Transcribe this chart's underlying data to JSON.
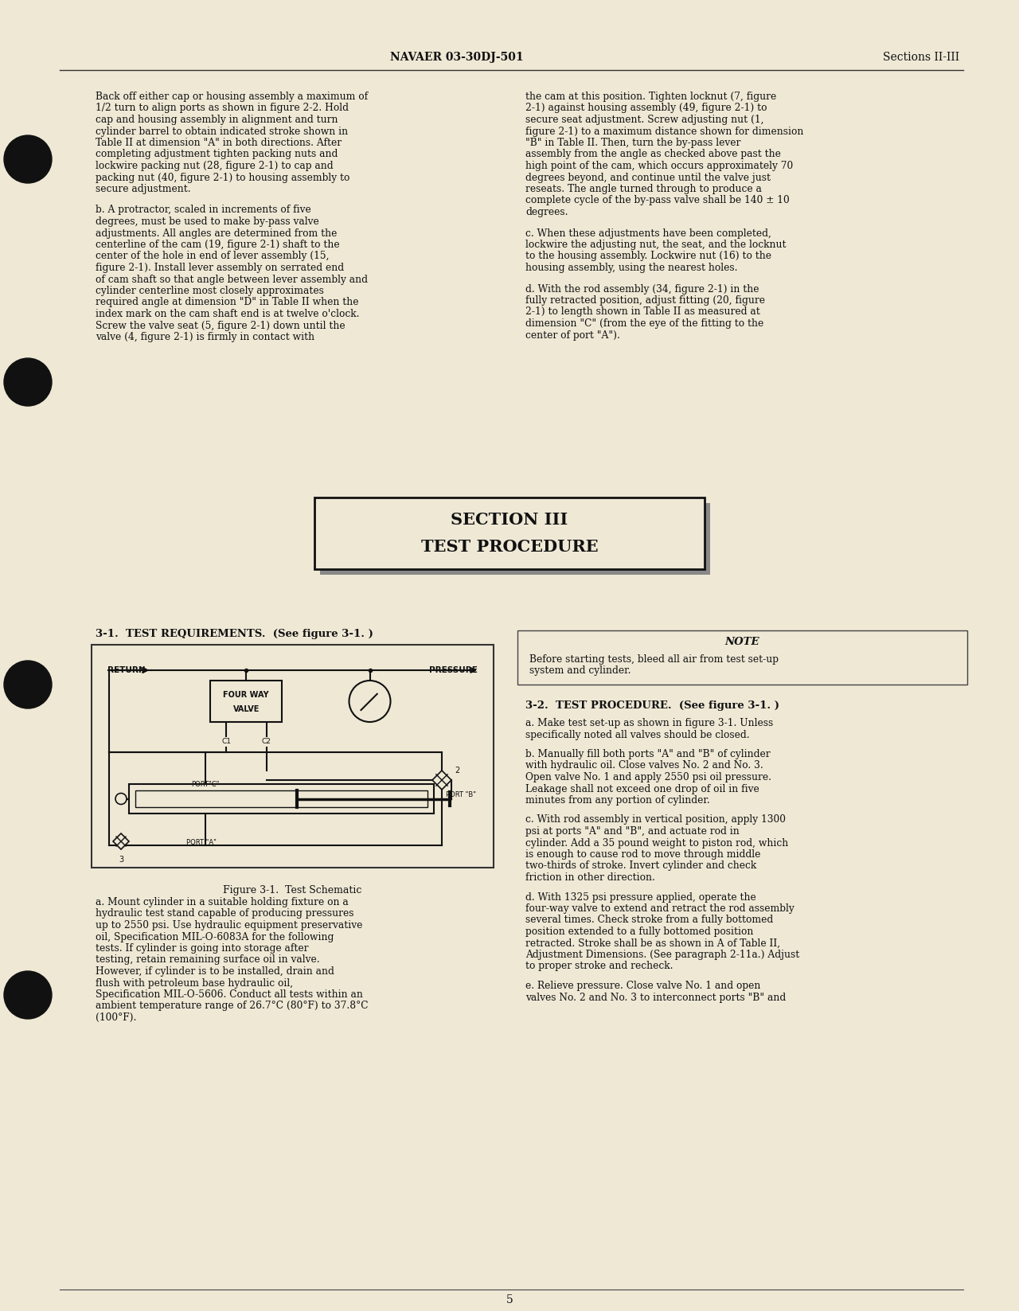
{
  "bg_color": "#eee8d5",
  "text_color": "#111111",
  "header_left": "NAVAER 03-30DJ-501",
  "header_right": "Sections II-III",
  "footer_page": "5",
  "section_title_line1": "SECTION III",
  "section_title_line2": "TEST PROCEDURE",
  "col1_para1": "Back off either cap or housing assembly a maximum of 1/2 turn to align ports as shown in figure 2-2.  Hold cap and housing assembly in alignment and turn cylinder barrel to obtain indicated stroke shown in Table II at dimension \"A\" in both directions.  After completing adjustment tighten packing nuts and lockwire packing nut (28, figure 2-1) to cap and packing nut (40, figure 2-1) to housing assembly to secure adjustment.",
  "col1_para2": "b.  A protractor, scaled in increments of five degrees, must be used to make by-pass valve adjustments.  All angles are determined from the centerline of the cam (19, figure 2-1) shaft to the center of the hole in end of lever assembly (15, figure 2-1).  Install lever assembly on serrated end of cam shaft so that angle between lever assembly and cylinder centerline most closely approximates required angle at dimension \"D\" in Table II when the index mark on the cam shaft end is at twelve o'clock.  Screw the valve seat (5, figure 2-1) down until the valve (4, figure 2-1) is firmly in contact with",
  "col2_para1": "the cam at this position.  Tighten locknut (7, figure 2-1) against housing assembly (49, figure 2-1) to secure seat adjustment.  Screw adjusting nut (1, figure 2-1) to a maximum distance shown for dimension \"B\" in Table II.  Then, turn the by-pass lever assembly from the angle as checked above past the high point of the cam, which occurs approximately 70 degrees beyond, and continue until the valve just reseats.  The angle turned through to produce a complete cycle of the by-pass valve shall be 140 ± 10 degrees.",
  "col2_para2": "c.  When these adjustments have been completed, lockwire the adjusting nut, the seat, and the locknut to the housing assembly.  Lockwire nut (16) to the housing assembly, using the nearest holes.",
  "col2_para3": "d.  With the rod assembly (34, figure 2-1) in the fully retracted position, adjust fitting (20, figure 2-1) to length shown in Table II as measured at dimension \"C\" (from the eye of the fitting to the center of port \"A\").",
  "test_req_title": "3-1.  TEST REQUIREMENTS.  (See figure 3-1. )",
  "figure_caption": "Figure 3-1.  Test Schematic",
  "col1_bot_para1": "a.  Mount cylinder in a suitable holding fixture on a hydraulic test stand capable of producing pressures up to 2550 psi.  Use hydraulic equipment preservative oil, Specification MIL-O-6083A for the following tests. If cylinder is going into storage after testing, retain remaining surface oil in valve.  However, if cylinder is to be installed, drain and flush with petroleum base hydraulic oil, Specification MIL-O-5606.  Conduct all tests within an ambient temperature range of 26.7°C (80°F) to 37.8°C (100°F).",
  "note_title": "NOTE",
  "note_text": "Before starting tests, bleed all air from test set-up system and cylinder.",
  "test_proc_title": "3-2.  TEST PROCEDURE.  (See figure 3-1. )",
  "col2_bot_para1": "a.  Make test set-up as shown in figure 3-1.  Unless specifically noted all valves should be closed.",
  "col2_bot_para2": "b.  Manually fill both ports \"A\" and \"B\" of cylinder with hydraulic oil.  Close valves No. 2 and No. 3.  Open valve No. 1 and apply 2550 psi oil pressure.  Leakage shall not exceed one drop of oil in five minutes from any portion of cylinder.",
  "col2_bot_para3": "c.  With rod assembly in vertical position, apply 1300 psi at ports \"A\" and \"B\", and actuate rod in cylinder. Add a 35 pound weight to piston rod, which is enough to cause rod to move through middle two-thirds of stroke. Invert cylinder and check friction in other direction.",
  "col2_bot_para4": "d.  With 1325 psi pressure applied, operate the four-way valve to extend and retract the rod assembly several times.  Check stroke from a fully bottomed position extended to a fully bottomed position retracted.  Stroke shall be as shown in A of Table II, Adjustment Dimensions.  (See paragraph 2-11a.)  Adjust to proper stroke and recheck.",
  "col2_bot_para5": "e.  Relieve pressure.  Close valve No. 1 and open valves No. 2 and No. 3 to interconnect ports \"B\" and"
}
